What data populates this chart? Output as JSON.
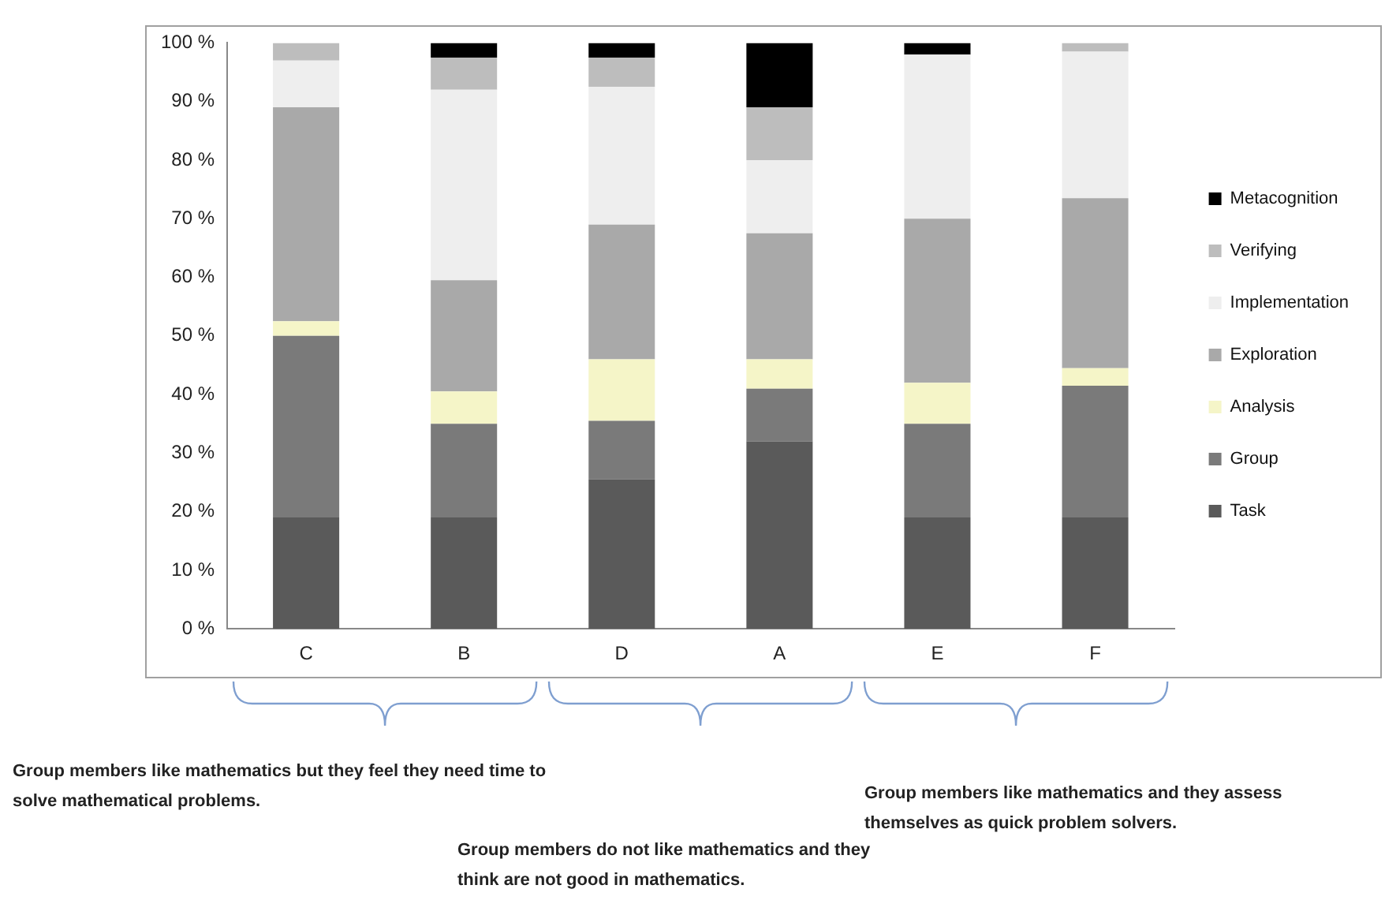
{
  "chart_data": {
    "type": "bar",
    "stacked": true,
    "categories": [
      "C",
      "B",
      "D",
      "A",
      "E",
      "F"
    ],
    "series": [
      {
        "name": "Task",
        "color": "#5a5a5a",
        "values": [
          19,
          19,
          25.5,
          32,
          19,
          19
        ]
      },
      {
        "name": "Group",
        "color": "#7a7a7a",
        "values": [
          31,
          16,
          10,
          9,
          16,
          22.5
        ]
      },
      {
        "name": "Analysis",
        "color": "#f5f5c8",
        "values": [
          2.5,
          5.5,
          10.5,
          5,
          7,
          3
        ]
      },
      {
        "name": "Exploration",
        "color": "#a9a9a9",
        "values": [
          36.5,
          19,
          23,
          21.5,
          28,
          29
        ]
      },
      {
        "name": "Implementation",
        "color": "#eeeeee",
        "values": [
          8,
          32.5,
          23.5,
          12.5,
          28,
          25
        ]
      },
      {
        "name": "Verifying",
        "color": "#bdbdbd",
        "values": [
          3,
          5.5,
          5,
          9,
          0,
          1.5
        ]
      },
      {
        "name": "Metacognition",
        "color": "#000000",
        "values": [
          0,
          2.5,
          2.5,
          11,
          2,
          0
        ]
      }
    ],
    "ylim": [
      0,
      100
    ],
    "yticks": [
      {
        "value": 0,
        "label": "0 %"
      },
      {
        "value": 10,
        "label": "10 %"
      },
      {
        "value": 20,
        "label": "20 %"
      },
      {
        "value": 30,
        "label": "30 %"
      },
      {
        "value": 40,
        "label": "40 %"
      },
      {
        "value": 50,
        "label": "50 %"
      },
      {
        "value": 60,
        "label": "60 %"
      },
      {
        "value": 70,
        "label": "70 %"
      },
      {
        "value": 80,
        "label": "80 %"
      },
      {
        "value": 90,
        "label": "90 %"
      },
      {
        "value": 100,
        "label": "100 %"
      }
    ],
    "grid": false,
    "legend": "right",
    "annotations": [
      "Group members like mathematics but they feel they need time to solve mathematical problems.",
      "Group members do not like mathematics and they think are not good in mathematics.",
      "Group members like mathematics and they assess themselves as quick problem solvers."
    ]
  }
}
